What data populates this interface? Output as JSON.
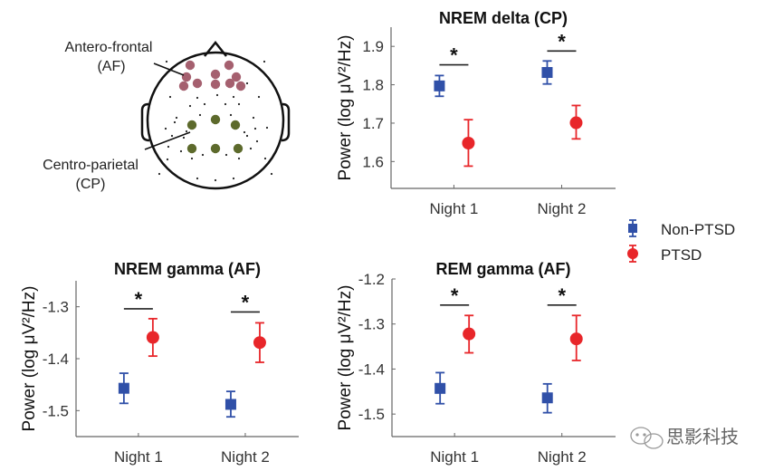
{
  "head_diagram": {
    "labels": [
      {
        "name": "af-label",
        "lines": [
          "Antero-frontal",
          "(AF)"
        ]
      },
      {
        "name": "cp-label",
        "lines": [
          "Centro-parietal",
          "(CP)"
        ]
      }
    ],
    "colors": {
      "AF": "#a5606f",
      "CP": "#5d6a2c",
      "outline": "#111111",
      "small_dot": "#222222"
    }
  },
  "legend": {
    "placement": "right",
    "entries": [
      {
        "label": "Non-PTSD",
        "color": "#3050a8",
        "marker": "square"
      },
      {
        "label": "PTSD",
        "color": "#e8262a",
        "marker": "circle"
      }
    ]
  },
  "watermark": {
    "text": "思影科技"
  },
  "chart_data": [
    {
      "id": "nrem-delta",
      "type": "scatter",
      "title": "NREM delta (CP)",
      "xlabel": "",
      "ylabel": "Power (log μV²/Hz)",
      "categories": [
        "Night 1",
        "Night 2"
      ],
      "ylim": [
        1.53,
        1.95
      ],
      "yticks": [
        1.6,
        1.7,
        1.8,
        1.9
      ],
      "ytick_labels": [
        "1.6",
        "1.7",
        "1.8",
        "1.9"
      ],
      "series": [
        {
          "name": "Non-PTSD",
          "values": [
            1.797,
            1.832
          ],
          "err_low": [
            1.77,
            1.802
          ],
          "err_high": [
            1.824,
            1.862
          ]
        },
        {
          "name": "PTSD",
          "values": [
            1.648,
            1.701
          ],
          "err_low": [
            1.588,
            1.659
          ],
          "err_high": [
            1.709,
            1.746
          ]
        }
      ],
      "significance": [
        {
          "category": "Night 1",
          "label": "*",
          "y": 1.852
        },
        {
          "category": "Night 2",
          "label": "*",
          "y": 1.888
        }
      ]
    },
    {
      "id": "nrem-gamma",
      "type": "scatter",
      "title": "NREM gamma (AF)",
      "xlabel": "",
      "ylabel": "Power (log μV²/Hz)",
      "categories": [
        "Night 1",
        "Night 2"
      ],
      "ylim": [
        -1.55,
        -1.25
      ],
      "yticks": [
        -1.5,
        -1.4,
        -1.3
      ],
      "ytick_labels": [
        "-1.5",
        "-1.4",
        "-1.3"
      ],
      "series": [
        {
          "name": "Non-PTSD",
          "values": [
            -1.457,
            -1.488
          ],
          "err_low": [
            -1.486,
            -1.512
          ],
          "err_high": [
            -1.428,
            -1.463
          ]
        },
        {
          "name": "PTSD",
          "values": [
            -1.359,
            -1.369
          ],
          "err_low": [
            -1.395,
            -1.407
          ],
          "err_high": [
            -1.323,
            -1.331
          ]
        },
        {
          "name": "_",
          "values": []
        }
      ],
      "significance": [
        {
          "category": "Night 1",
          "label": "*",
          "y": -1.304
        },
        {
          "category": "Night 2",
          "label": "*",
          "y": -1.31
        }
      ]
    },
    {
      "id": "rem-gamma",
      "type": "scatter",
      "title": "REM gamma (AF)",
      "xlabel": "",
      "ylabel": "Power (log μV²/Hz)",
      "categories": [
        "Night 1",
        "Night 2"
      ],
      "ylim": [
        -1.55,
        -1.2
      ],
      "yticks": [
        -1.5,
        -1.4,
        -1.3,
        -1.2
      ],
      "ytick_labels": [
        "-1.5",
        "-1.4",
        "-1.3",
        "-1.2"
      ],
      "series": [
        {
          "name": "Non-PTSD",
          "values": [
            -1.443,
            -1.464
          ],
          "err_low": [
            -1.477,
            -1.497
          ],
          "err_high": [
            -1.408,
            -1.433
          ]
        },
        {
          "name": "PTSD",
          "values": [
            -1.322,
            -1.333
          ],
          "err_low": [
            -1.364,
            -1.381
          ],
          "err_high": [
            -1.281,
            -1.281
          ]
        }
      ],
      "significance": [
        {
          "category": "Night 1",
          "label": "*",
          "y": -1.258
        },
        {
          "category": "Night 2",
          "label": "*",
          "y": -1.258
        }
      ]
    }
  ]
}
